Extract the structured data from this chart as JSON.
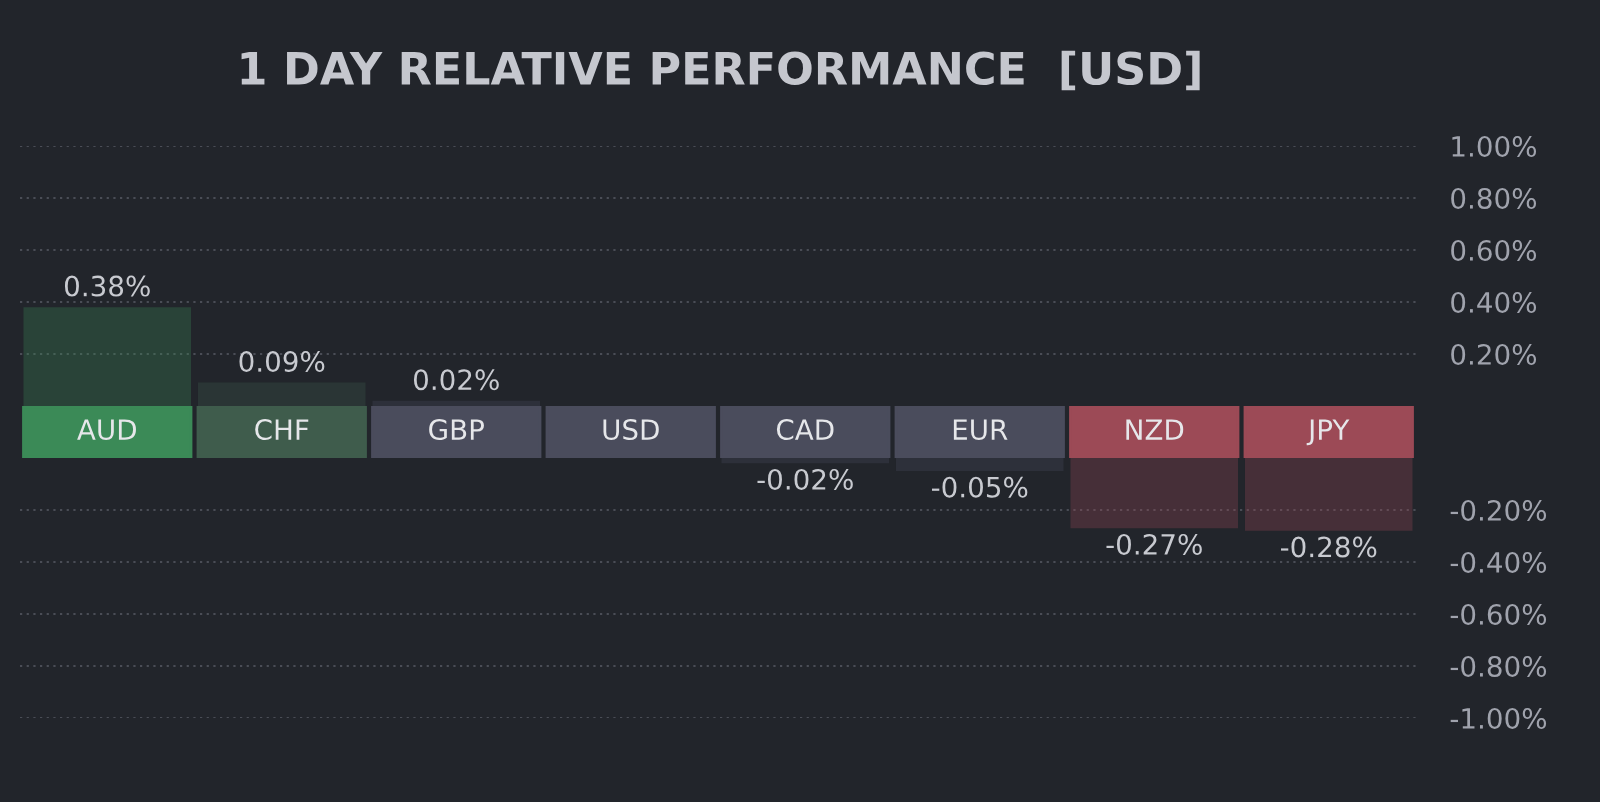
{
  "chart_data": [
    {
      "type": "bar",
      "title": "1 DAY RELATIVE PERFORMANCE  [USD]",
      "categories": [
        "AUD",
        "CHF",
        "GBP",
        "USD",
        "CAD",
        "EUR",
        "NZD",
        "JPY"
      ],
      "values": [
        0.38,
        0.09,
        0.02,
        0,
        null,
        null,
        null,
        null
      ],
      "value_labels": [
        "0.38%",
        "0.09%",
        "0.02%",
        null,
        null,
        null,
        null,
        null
      ],
      "colors": [
        "#3b8a57",
        "#3f5c4c",
        "#4a4c5c",
        "#4a4c5c",
        "#4a4c5c",
        "#4a4c5c",
        "#9c4a56",
        "#9c4a56"
      ],
      "ylim": [
        0,
        1.0
      ],
      "yticks": [
        {
          "value": 0.2,
          "label": "0.20%"
        },
        {
          "value": 0.4,
          "label": "0.40%"
        },
        {
          "value": 0.6,
          "label": "0.60%"
        },
        {
          "value": 0.8,
          "label": "0.80%"
        },
        {
          "value": 1.0,
          "label": "1.00%"
        }
      ],
      "grid": "y"
    },
    {
      "type": "bar",
      "values": [
        null,
        null,
        null,
        null,
        -0.02,
        -0.05,
        -0.27,
        -0.28
      ],
      "value_labels": [
        null,
        null,
        null,
        null,
        "-0.02%",
        "-0.05%",
        "-0.27%",
        "-0.28%"
      ],
      "colors": [
        "#3b8a57",
        "#3f5c4c",
        "#4a4c5c",
        "#4a4c5c",
        "#4a4c5c",
        "#4a4c5c",
        "#9c4a56",
        "#9c4a56"
      ],
      "ylim": [
        -1.0,
        0
      ],
      "yticks": [
        {
          "value": -0.2,
          "label": "-0.20%"
        },
        {
          "value": -0.4,
          "label": "-0.40%"
        },
        {
          "value": -0.6,
          "label": "-0.60%"
        },
        {
          "value": -0.8,
          "label": "-0.80%"
        },
        {
          "value": -1.0,
          "label": "-1.00%"
        }
      ],
      "grid": "y",
      "tick_labels": "y"
    }
  ]
}
